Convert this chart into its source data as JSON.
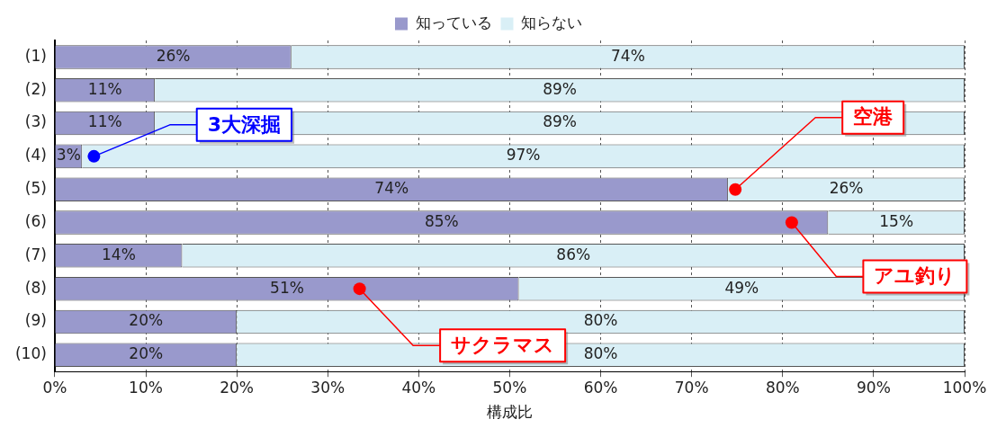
{
  "chart_data": {
    "type": "bar",
    "orientation": "horizontal",
    "stacked": true,
    "xlabel": "構成比",
    "categories": [
      "(1)",
      "(2)",
      "(3)",
      "(4)",
      "(5)",
      "(6)",
      "(7)",
      "(8)",
      "(9)",
      "(10)"
    ],
    "series": [
      {
        "name": "知っている",
        "color": "#9999cc",
        "values": [
          26,
          11,
          11,
          3,
          74,
          85,
          14,
          51,
          20,
          20
        ],
        "value_labels": [
          "26%",
          "11%",
          "11%",
          "3%",
          "74%",
          "85%",
          "14%",
          "51%",
          "20%",
          "20%"
        ]
      },
      {
        "name": "知らない",
        "color": "#d9eff6",
        "values": [
          74,
          89,
          89,
          97,
          26,
          15,
          86,
          49,
          80,
          80
        ],
        "value_labels": [
          "74%",
          "89%",
          "89%",
          "97%",
          "26%",
          "15%",
          "86%",
          "49%",
          "80%",
          "80%"
        ]
      }
    ],
    "xlim": [
      0,
      100
    ],
    "xticks": [
      {
        "value": 0,
        "label": "0%"
      },
      {
        "value": 10,
        "label": "10%"
      },
      {
        "value": 20,
        "label": "20%"
      },
      {
        "value": 30,
        "label": "30%"
      },
      {
        "value": 40,
        "label": "40%"
      },
      {
        "value": 50,
        "label": "50%"
      },
      {
        "value": 60,
        "label": "60%"
      },
      {
        "value": 70,
        "label": "70%"
      },
      {
        "value": 80,
        "label": "80%"
      },
      {
        "value": 90,
        "label": "90%"
      },
      {
        "value": 100,
        "label": "100%"
      }
    ],
    "grid": "x",
    "legend": "top",
    "annotations": [
      {
        "text": "3大深掘",
        "x": 4.3,
        "y": "(4)"
      },
      {
        "text": "空港",
        "x": 74.8,
        "y": "(5)"
      },
      {
        "text": "アユ釣り",
        "x": 81,
        "y": "(6)"
      },
      {
        "text": "サクラマス",
        "x": 33.5,
        "y": "(8)"
      }
    ]
  }
}
